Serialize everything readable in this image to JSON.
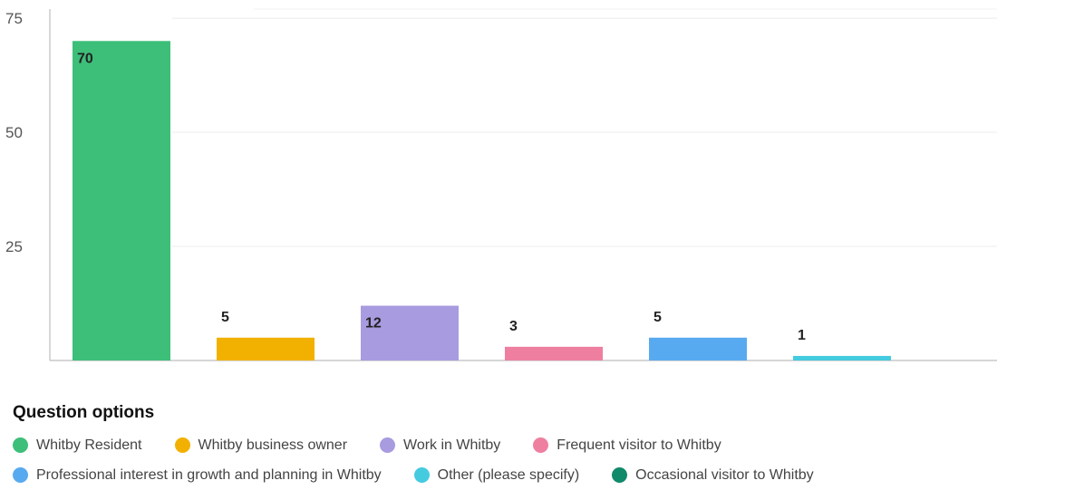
{
  "chart_data": {
    "type": "bar",
    "categories": [
      "Whitby Resident",
      "Whitby business owner",
      "Work in Whitby",
      "Frequent visitor to Whitby",
      "Professional interest in growth and planning in Whitby",
      "Other (please specify)",
      "Occasional visitor to Whitby"
    ],
    "values": [
      70,
      5,
      12,
      3,
      5,
      1,
      0
    ],
    "data_labels": [
      "70",
      "5",
      "12",
      "3",
      "5",
      "1",
      ""
    ],
    "colors": [
      "#3dbf79",
      "#f2b100",
      "#a89be0",
      "#ee7fa0",
      "#58aaf0",
      "#45cbe0",
      "#0f8a6b"
    ],
    "yticks": [
      25,
      50,
      75
    ],
    "ylim": [
      0,
      77
    ],
    "grid": true,
    "legend_placement": "bottom-left",
    "legend_title": "Question options"
  }
}
